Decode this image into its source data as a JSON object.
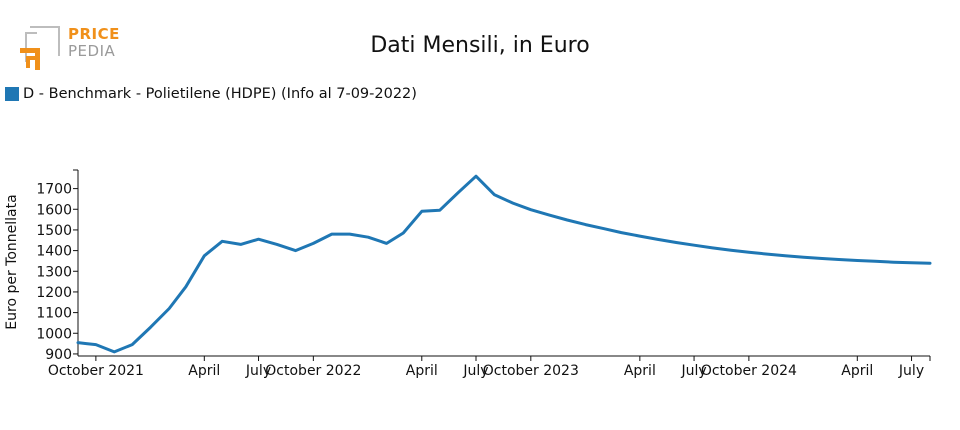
{
  "logo": {
    "line1": "PRICE",
    "line2": "PEDIA",
    "orange": "#f0901a",
    "grey": "#9a9a9a"
  },
  "title": "Dati Mensili, in Euro",
  "legend": {
    "label": "D - Benchmark - Polietilene (HDPE) (Info al 7-09-2022)",
    "color": "#1f77b4"
  },
  "chart_data": {
    "type": "line",
    "title": "Dati Mensili, in Euro",
    "xlabel": "",
    "ylabel": "Euro per Tonnellata",
    "ylim": [
      890,
      1790
    ],
    "yticks": [
      900,
      1000,
      1100,
      1200,
      1300,
      1400,
      1500,
      1600,
      1700
    ],
    "xlim": [
      "2021-09-01",
      "2025-08-01"
    ],
    "xticks": [
      {
        "date": "2021-10-01",
        "label": "October 2021"
      },
      {
        "date": "2022-04-01",
        "label": "April"
      },
      {
        "date": "2022-07-01",
        "label": "July"
      },
      {
        "date": "2022-10-01",
        "label": "October 2022"
      },
      {
        "date": "2023-04-01",
        "label": "April"
      },
      {
        "date": "2023-07-01",
        "label": "July"
      },
      {
        "date": "2023-10-01",
        "label": "October 2023"
      },
      {
        "date": "2024-04-01",
        "label": "April"
      },
      {
        "date": "2024-07-01",
        "label": "July"
      },
      {
        "date": "2024-10-01",
        "label": "October 2024"
      },
      {
        "date": "2025-04-01",
        "label": "April"
      },
      {
        "date": "2025-07-01",
        "label": "July"
      }
    ],
    "grid": false,
    "legend_position": "top-left",
    "series": [
      {
        "name": "D - Benchmark - Polietilene (HDPE) (Info al 7-09-2022)",
        "color": "#1f77b4",
        "points": [
          [
            "2021-09-01",
            955
          ],
          [
            "2021-09-15",
            950
          ],
          [
            "2021-10-01",
            945
          ],
          [
            "2021-11-01",
            910
          ],
          [
            "2021-12-01",
            945
          ],
          [
            "2022-01-01",
            1030
          ],
          [
            "2022-02-01",
            1120
          ],
          [
            "2022-03-01",
            1225
          ],
          [
            "2022-04-01",
            1375
          ],
          [
            "2022-05-01",
            1445
          ],
          [
            "2022-06-01",
            1430
          ],
          [
            "2022-07-01",
            1455
          ],
          [
            "2022-08-01",
            1430
          ],
          [
            "2022-09-01",
            1400
          ],
          [
            "2022-10-01",
            1435
          ],
          [
            "2022-11-01",
            1480
          ],
          [
            "2022-12-01",
            1480
          ],
          [
            "2023-01-01",
            1465
          ],
          [
            "2023-02-01",
            1435
          ],
          [
            "2023-03-01",
            1485
          ],
          [
            "2023-04-01",
            1590
          ],
          [
            "2023-05-01",
            1595
          ],
          [
            "2023-06-01",
            1680
          ],
          [
            "2023-07-01",
            1760
          ],
          [
            "2023-08-01",
            1670
          ],
          [
            "2023-09-01",
            1630
          ],
          [
            "2023-10-01",
            1598
          ],
          [
            "2023-11-01",
            1572
          ],
          [
            "2023-12-01",
            1548
          ],
          [
            "2024-01-01",
            1526
          ],
          [
            "2024-02-01",
            1506
          ],
          [
            "2024-03-01",
            1487
          ],
          [
            "2024-04-01",
            1470
          ],
          [
            "2024-05-01",
            1454
          ],
          [
            "2024-06-01",
            1439
          ],
          [
            "2024-07-01",
            1426
          ],
          [
            "2024-08-01",
            1413
          ],
          [
            "2024-09-01",
            1402
          ],
          [
            "2024-10-01",
            1392
          ],
          [
            "2024-11-01",
            1383
          ],
          [
            "2024-12-01",
            1375
          ],
          [
            "2025-01-01",
            1368
          ],
          [
            "2025-02-01",
            1362
          ],
          [
            "2025-03-01",
            1357
          ],
          [
            "2025-04-01",
            1352
          ],
          [
            "2025-05-01",
            1348
          ],
          [
            "2025-06-01",
            1344
          ],
          [
            "2025-07-01",
            1341
          ],
          [
            "2025-08-01",
            1339
          ]
        ]
      }
    ]
  }
}
